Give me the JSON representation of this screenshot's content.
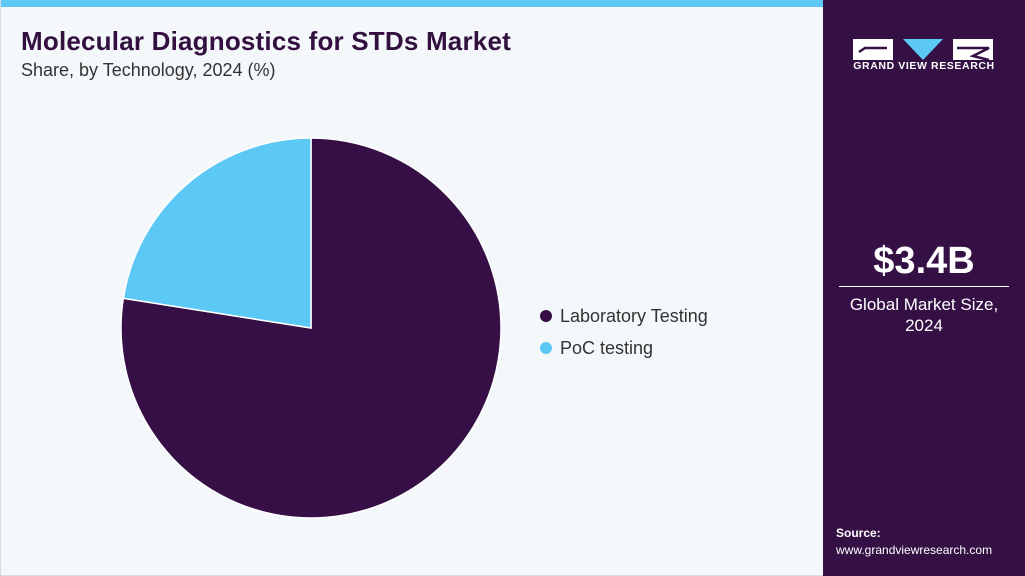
{
  "header": {
    "title": "Molecular Diagnostics for STDs Market",
    "subtitle": "Share, by Technology, 2024 (%)"
  },
  "chart_data": {
    "type": "pie",
    "title": "Molecular Diagnostics for STDs Market",
    "subtitle": "Share, by Technology, 2024 (%)",
    "categories": [
      "Laboratory Testing",
      "PoC testing"
    ],
    "values": [
      77.5,
      22.5
    ],
    "colors": [
      "#350f45",
      "#5bc8f5"
    ],
    "legend_position": "right"
  },
  "sidebar": {
    "logo_text": "GRAND VIEW RESEARCH",
    "market_size": "$3.4B",
    "market_label": "Global Market Size, 2024",
    "source_label": "Source:",
    "source_url": "www.grandviewresearch.com"
  },
  "colors": {
    "accent": "#5bc8f5",
    "brand": "#351045",
    "title": "#33103f"
  }
}
